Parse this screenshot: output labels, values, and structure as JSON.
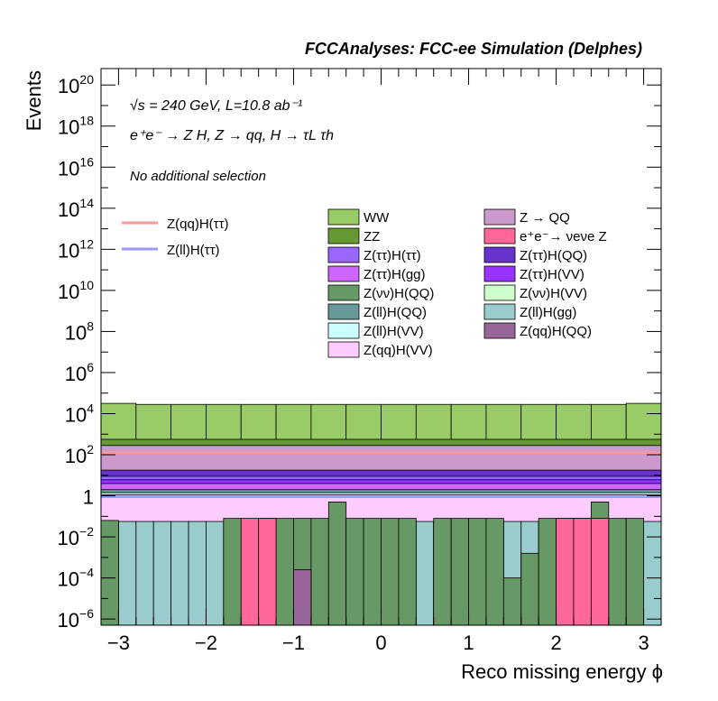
{
  "chart_data": {
    "type": "area",
    "title": "FCCAnalyses: FCC-ee Simulation (Delphes)",
    "xlabel": "Reco missing energy ϕ",
    "ylabel": "Events",
    "xlim": [
      -3.2,
      3.2
    ],
    "ylim_log10": [
      -6.3,
      20.8
    ],
    "log_y": true,
    "grid": false,
    "x_ticks": [
      -3,
      -2,
      -1,
      0,
      1,
      2,
      3
    ],
    "x_tick_labels": [
      "−3",
      "−2",
      "−1",
      "0",
      "1",
      "2",
      "3"
    ],
    "y_ticks": [
      {
        "pow": -6,
        "base": "10",
        "exp": "−6"
      },
      {
        "pow": -4,
        "base": "10",
        "exp": "−4"
      },
      {
        "pow": -2,
        "base": "10",
        "exp": "−2"
      },
      {
        "pow": 0,
        "base": "1",
        "exp": ""
      },
      {
        "pow": 2,
        "base": "10",
        "exp": "2"
      },
      {
        "pow": 4,
        "base": "10",
        "exp": "4"
      },
      {
        "pow": 6,
        "base": "10",
        "exp": "6"
      },
      {
        "pow": 8,
        "base": "10",
        "exp": "8"
      },
      {
        "pow": 10,
        "base": "10",
        "exp": "10"
      },
      {
        "pow": 12,
        "base": "10",
        "exp": "12"
      },
      {
        "pow": 14,
        "base": "10",
        "exp": "14"
      },
      {
        "pow": 16,
        "base": "10",
        "exp": "16"
      },
      {
        "pow": 18,
        "base": "10",
        "exp": "18"
      },
      {
        "pow": 20,
        "base": "10",
        "exp": "20"
      }
    ],
    "annotations": {
      "energy_line": "√s = 240 GeV, L=10.8 ab⁻¹",
      "process_line": "e⁺e⁻ → Z H, Z → qq, H → τL τh",
      "selection_line": "No additional selection"
    },
    "stack_layers": [
      {
        "name": "WW",
        "color": "#99cc66",
        "top_log10": 4.45
      },
      {
        "name": "Z → QQ",
        "color": "#cc99cc",
        "top_log10": 2.45
      },
      {
        "name": "ZZ",
        "color": "#669933",
        "top_log10": 2.75
      },
      {
        "name": "Z(ττ)H(ττ)",
        "color": "#9966ff",
        "top_log10": 0.95
      },
      {
        "name": "Z(ττ)H(QQ)",
        "color": "#6633cc",
        "top_log10": 1.25
      },
      {
        "name": "Z(ττ)H(gg)",
        "color": "#cc66ff",
        "top_log10": 0.6
      },
      {
        "name": "Z(ττ)H(VV)",
        "color": "#9933ff",
        "top_log10": 0.78
      },
      {
        "name": "Z(ll)H(QQ)",
        "color": "#669999",
        "top_log10": 0.3
      },
      {
        "name": "Z(ll)H(VV)",
        "color": "#ccffff",
        "top_log10": 0.15
      },
      {
        "name": "Z(qq)H(VV)",
        "color": "#ffccff",
        "top_log10": 0.05
      }
    ],
    "bins_x": [
      -3.2,
      -2.8,
      -2.4,
      -2.0,
      -1.6,
      -1.2,
      -0.8,
      -0.4,
      0.0,
      0.4,
      0.8,
      1.2,
      1.6,
      2.0,
      2.4,
      2.8,
      3.2
    ],
    "ww_bin_log10": [
      4.5,
      4.45,
      4.45,
      4.45,
      4.45,
      4.45,
      4.45,
      4.45,
      4.45,
      4.45,
      4.45,
      4.45,
      4.45,
      4.45,
      4.45,
      4.5
    ],
    "low_bins": {
      "x": [
        -3.2,
        -3.0,
        -2.8,
        -2.6,
        -2.4,
        -2.2,
        -2.0,
        -1.8,
        -1.6,
        -1.4,
        -1.2,
        -1.0,
        -0.8,
        -0.6,
        -0.4,
        -0.2,
        0.0,
        0.2,
        0.4,
        0.6,
        0.8,
        1.0,
        1.2,
        1.4,
        1.6,
        1.8,
        2.0,
        2.2,
        2.4,
        2.6,
        2.8,
        3.0,
        3.2
      ],
      "Z(ll)H(gg)_log10": [
        -1.25,
        -1.25,
        -1.25,
        -1.25,
        -1.25,
        -1.25,
        -1.25,
        -1.25,
        -1.25,
        -1.25,
        -1.25,
        -1.25,
        -1.25,
        -1.25,
        -1.25,
        -1.25,
        -1.25,
        -1.25,
        -1.25,
        -1.25,
        -1.25,
        -1.25,
        -1.25,
        -1.25,
        -1.25,
        -1.25,
        -1.25,
        -1.25,
        -1.25,
        -1.25,
        -1.25,
        -1.25
      ],
      "Z(νν)H(QQ)_log10": [
        -1.2,
        -6.3,
        -6.3,
        -6.3,
        -6.3,
        -6.3,
        -6.3,
        -1.1,
        -6.3,
        -1.1,
        -1.1,
        -1.1,
        -1.1,
        -0.3,
        -1.1,
        -1.1,
        -1.1,
        -1.1,
        -6.3,
        -1.1,
        -1.1,
        -1.1,
        -1.1,
        -4.0,
        -2.8,
        -1.1,
        -1.1,
        -1.1,
        -0.3,
        -1.1,
        -1.1,
        -6.3
      ],
      "e⁺e⁻→νeνe Z_log10": [
        -6.3,
        -6.3,
        -6.3,
        -6.3,
        -6.3,
        -6.3,
        -6.3,
        -6.3,
        -1.1,
        -1.1,
        -6.3,
        -6.3,
        -6.3,
        -6.3,
        -6.3,
        -6.3,
        -6.3,
        -6.3,
        -6.3,
        -6.3,
        -6.3,
        -6.3,
        -6.3,
        -6.3,
        -6.3,
        -6.3,
        -1.1,
        -1.1,
        -1.1,
        -6.3,
        -6.3,
        -6.3
      ],
      "Z(qq)H(QQ)_log10": [
        -6.3,
        -6.3,
        -6.3,
        -6.3,
        -6.3,
        -6.3,
        -6.3,
        -6.3,
        -6.3,
        -6.3,
        -6.3,
        -3.6,
        -6.3,
        -6.3,
        -6.3,
        -6.3,
        -6.3,
        -6.3,
        -6.3,
        -6.3,
        -6.3,
        -6.3,
        -6.3,
        -6.3,
        -6.3,
        -6.3,
        -6.3,
        -6.3,
        -6.3,
        -6.3,
        -6.3,
        -6.3
      ]
    },
    "lines": [
      {
        "name": "Z(qq)H(ττ)",
        "color": "#ff9999",
        "level_log10": 2.1
      },
      {
        "name": "Z(ll)H(ττ)",
        "color": "#9999ff",
        "level_log10": -0.05
      }
    ],
    "legend": {
      "placement": "top-right",
      "line_entries": [
        "Z(qq)H(ττ)",
        "Z(ll)H(ττ)"
      ],
      "fill_entries": [
        {
          "label": "WW",
          "color": "#99cc66"
        },
        {
          "label": "Z → QQ",
          "color": "#cc99cc"
        },
        {
          "label": "ZZ",
          "color": "#669933"
        },
        {
          "label": "e⁺e⁻→ νeνe Z",
          "color": "#ff6699"
        },
        {
          "label": "Z(ττ)H(ττ)",
          "color": "#9966ff"
        },
        {
          "label": "Z(ττ)H(QQ)",
          "color": "#6633cc"
        },
        {
          "label": "Z(ττ)H(gg)",
          "color": "#cc66ff"
        },
        {
          "label": "Z(ττ)H(VV)",
          "color": "#9933ff"
        },
        {
          "label": "Z(νν)H(QQ)",
          "color": "#669966"
        },
        {
          "label": "Z(νν)H(VV)",
          "color": "#ccffcc"
        },
        {
          "label": "Z(ll)H(QQ)",
          "color": "#669999"
        },
        {
          "label": "Z(ll)H(gg)",
          "color": "#99cccc"
        },
        {
          "label": "Z(ll)H(VV)",
          "color": "#ccffff"
        },
        {
          "label": "Z(qq)H(QQ)",
          "color": "#996699"
        },
        {
          "label": "Z(qq)H(VV)",
          "color": "#ffccff"
        }
      ]
    }
  }
}
